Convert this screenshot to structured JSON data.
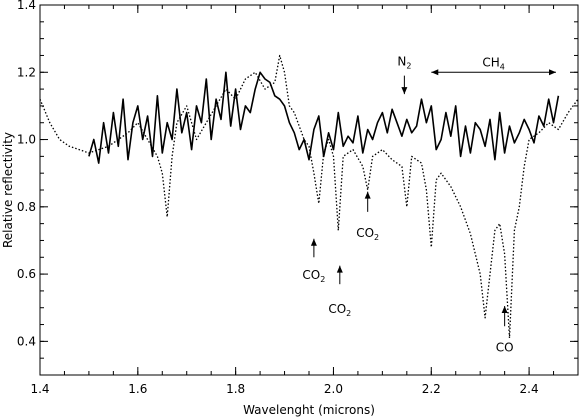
{
  "chart_data": {
    "type": "line",
    "xlabel": "Wavelenght (microns)",
    "ylabel": "Relative reflectivity",
    "xlim": [
      1.4,
      2.5
    ],
    "ylim": [
      0.3,
      1.4
    ],
    "x_ticks": [
      1.4,
      1.6,
      1.8,
      2.0,
      2.2,
      2.4
    ],
    "x_tick_labels": [
      "1.4",
      "1.6",
      "1.8",
      "2.0",
      "2.2",
      "2.4"
    ],
    "y_ticks": [
      0.4,
      0.6,
      0.8,
      1.0,
      1.2,
      1.4
    ],
    "y_tick_labels": [
      "0.4",
      "0.6",
      "0.8",
      "1.0",
      "1.2",
      "1.4"
    ],
    "grid": false,
    "series": [
      {
        "style": "solid",
        "color": "#000000",
        "x": [
          1.5,
          1.51,
          1.52,
          1.53,
          1.54,
          1.55,
          1.56,
          1.57,
          1.58,
          1.59,
          1.6,
          1.61,
          1.62,
          1.63,
          1.64,
          1.65,
          1.66,
          1.67,
          1.68,
          1.69,
          1.7,
          1.71,
          1.72,
          1.73,
          1.74,
          1.75,
          1.76,
          1.77,
          1.78,
          1.79,
          1.8,
          1.81,
          1.82,
          1.83,
          1.84,
          1.85,
          1.86,
          1.87,
          1.88,
          1.89,
          1.9,
          1.91,
          1.92,
          1.93,
          1.94,
          1.95,
          1.96,
          1.97,
          1.98,
          1.99,
          2.0,
          2.01,
          2.02,
          2.03,
          2.04,
          2.05,
          2.06,
          2.07,
          2.08,
          2.09,
          2.1,
          2.11,
          2.12,
          2.13,
          2.14,
          2.15,
          2.16,
          2.17,
          2.18,
          2.19,
          2.2,
          2.21,
          2.22,
          2.23,
          2.24,
          2.25,
          2.26,
          2.27,
          2.28,
          2.29,
          2.3,
          2.31,
          2.32,
          2.33,
          2.34,
          2.35,
          2.36,
          2.37,
          2.38,
          2.39,
          2.4,
          2.41,
          2.42,
          2.43,
          2.44,
          2.45,
          2.46
        ],
        "y": [
          0.95,
          1.0,
          0.93,
          1.05,
          0.96,
          1.08,
          0.98,
          1.12,
          0.94,
          1.05,
          1.1,
          1.0,
          1.07,
          0.95,
          1.13,
          0.96,
          1.05,
          1.0,
          1.15,
          1.02,
          1.08,
          0.97,
          1.1,
          1.05,
          1.18,
          1.0,
          1.12,
          1.06,
          1.2,
          1.04,
          1.15,
          1.03,
          1.1,
          1.08,
          1.15,
          1.2,
          1.18,
          1.17,
          1.13,
          1.12,
          1.1,
          1.05,
          1.02,
          0.97,
          1.0,
          0.94,
          1.03,
          1.07,
          0.95,
          1.02,
          0.97,
          1.08,
          0.98,
          1.01,
          0.99,
          1.07,
          0.96,
          1.03,
          1.0,
          1.05,
          1.08,
          1.02,
          1.09,
          1.05,
          1.01,
          1.06,
          1.02,
          1.04,
          1.12,
          1.05,
          1.1,
          0.97,
          1.0,
          1.08,
          1.01,
          1.1,
          0.95,
          1.04,
          0.96,
          1.05,
          1.03,
          0.98,
          1.06,
          0.94,
          1.08,
          0.96,
          1.04,
          0.99,
          1.02,
          1.06,
          1.03,
          0.99,
          1.07,
          1.04,
          1.12,
          1.05,
          1.13
        ]
      },
      {
        "style": "dotted",
        "color": "#000000",
        "x": [
          1.4,
          1.42,
          1.44,
          1.46,
          1.48,
          1.5,
          1.52,
          1.54,
          1.56,
          1.58,
          1.6,
          1.62,
          1.64,
          1.65,
          1.66,
          1.67,
          1.68,
          1.7,
          1.72,
          1.74,
          1.76,
          1.78,
          1.8,
          1.82,
          1.84,
          1.86,
          1.88,
          1.89,
          1.9,
          1.91,
          1.92,
          1.94,
          1.95,
          1.96,
          1.97,
          1.98,
          1.99,
          2.0,
          2.01,
          2.02,
          2.04,
          2.06,
          2.07,
          2.08,
          2.1,
          2.12,
          2.14,
          2.15,
          2.16,
          2.18,
          2.19,
          2.2,
          2.21,
          2.22,
          2.24,
          2.26,
          2.28,
          2.3,
          2.31,
          2.32,
          2.33,
          2.34,
          2.35,
          2.36,
          2.37,
          2.38,
          2.39,
          2.4,
          2.42,
          2.44,
          2.46,
          2.48,
          2.5
        ],
        "y": [
          1.12,
          1.05,
          1.0,
          0.98,
          0.97,
          0.96,
          0.97,
          0.98,
          1.0,
          1.02,
          1.05,
          1.0,
          0.95,
          0.9,
          0.77,
          0.95,
          1.05,
          1.1,
          1.0,
          1.05,
          1.1,
          1.15,
          1.12,
          1.18,
          1.2,
          1.15,
          1.17,
          1.25,
          1.2,
          1.1,
          1.08,
          1.0,
          0.98,
          0.9,
          0.81,
          0.96,
          1.0,
          0.95,
          0.73,
          0.95,
          0.97,
          0.92,
          0.85,
          0.95,
          0.97,
          0.94,
          0.92,
          0.8,
          0.95,
          0.93,
          0.85,
          0.68,
          0.88,
          0.9,
          0.86,
          0.8,
          0.72,
          0.6,
          0.47,
          0.6,
          0.73,
          0.75,
          0.66,
          0.41,
          0.73,
          0.8,
          0.92,
          1.0,
          1.02,
          1.05,
          1.03,
          1.08,
          1.12
        ]
      }
    ],
    "annotations": [
      {
        "text": "CO",
        "sub": "2",
        "x": 1.96,
        "y": 0.585,
        "arrow_from": 0.65,
        "arrow_to": 0.705,
        "arrow_dir": "up"
      },
      {
        "text": "CO",
        "sub": "2",
        "x": 2.013,
        "y": 0.485,
        "arrow_from": 0.57,
        "arrow_to": 0.625,
        "arrow_dir": "up"
      },
      {
        "text": "CO",
        "sub": "2",
        "x": 2.07,
        "y": 0.71,
        "arrow_from": 0.785,
        "arrow_to": 0.845,
        "arrow_dir": "up"
      },
      {
        "text": "N",
        "sub": "2",
        "x": 2.145,
        "y": 1.22,
        "arrow_from": 1.19,
        "arrow_to": 1.135,
        "arrow_dir": "down"
      },
      {
        "text": "CO",
        "sub": "",
        "x": 2.35,
        "y": 0.37,
        "arrow_from": 0.445,
        "arrow_to": 0.505,
        "arrow_dir": "up"
      }
    ],
    "range_annotation": {
      "text": "CH",
      "sub": "4",
      "x_start": 2.2,
      "x_end": 2.455,
      "y": 1.2
    }
  }
}
